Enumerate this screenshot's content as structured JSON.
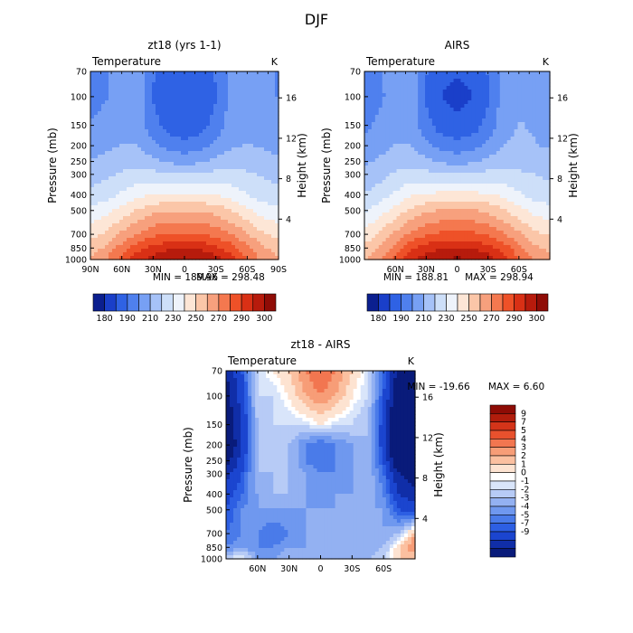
{
  "figure": {
    "title": "DJF"
  },
  "colors": {
    "model_scale": [
      "#0b1f8f",
      "#1a3fc9",
      "#2f62e4",
      "#4f80ee",
      "#77a0f4",
      "#a6c2f8",
      "#cddff9",
      "#eef3fb",
      "#fde6d6",
      "#fbc6a8",
      "#f7a07d",
      "#f4784f",
      "#ee5128",
      "#d93015",
      "#b71b0c",
      "#8f0c06"
    ],
    "diff_scale": [
      "#091b7a",
      "#102ea8",
      "#1b45cf",
      "#2d5fe3",
      "#4a7be9",
      "#6f98ef",
      "#93b1f2",
      "#b7cbf6",
      "#d9e5fa",
      "#ffffff",
      "#fde3d1",
      "#fbc0a0",
      "#f79d77",
      "#f27650",
      "#e8512d",
      "#d43419",
      "#b11d0c",
      "#8e0c05"
    ],
    "bottom_fill": "#f0f0f0"
  },
  "panels": {
    "model": {
      "title": "zt18 (yrs 1-1)",
      "variable": "Temperature",
      "unit": "K",
      "min_label": "MIN = 189.96",
      "max_label": "MAX = 298.48"
    },
    "airs": {
      "title": "AIRS",
      "variable": "Temperature",
      "unit": "K",
      "min_label": "MIN = 188.81",
      "max_label": "MAX = 298.94"
    },
    "diff": {
      "title": "zt18 - AIRS",
      "variable": "Temperature",
      "unit": "K",
      "min_label": "MIN = -19.66",
      "max_label": "MAX =    6.60"
    }
  },
  "chart_data": [
    {
      "type": "heatmap",
      "title": "zt18 (yrs 1-1)",
      "variable": "Temperature",
      "unit": "K",
      "ylabel": "Pressure (mb)",
      "y2label": "Height (km)",
      "yticks": [
        "70",
        "100",
        "150",
        "200",
        "250",
        "300",
        "400",
        "500",
        "700",
        "850",
        "1000"
      ],
      "y2ticks": [
        "16",
        "12",
        "8",
        "4"
      ],
      "xticks": [
        "90N",
        "60N",
        "30N",
        "0",
        "30S",
        "60S",
        "90S"
      ],
      "min": 189.96,
      "max": 298.48,
      "colorbar_ticks": [
        "180",
        "190",
        "210",
        "230",
        "250",
        "270",
        "290",
        "300"
      ],
      "pressure_levels_mb": [
        70,
        100,
        150,
        200,
        250,
        300,
        400,
        500,
        700,
        850,
        1000
      ],
      "lat_deg": [
        90,
        75,
        60,
        45,
        30,
        15,
        0,
        -15,
        -30,
        -45,
        -60,
        -75,
        -90
      ],
      "temperature_K": [
        [
          205,
          207,
          210,
          212,
          200,
          195,
          193,
          195,
          200,
          210,
          212,
          211,
          207
        ],
        [
          205,
          207,
          210,
          212,
          199,
          193,
          191,
          193,
          199,
          210,
          212,
          211,
          207
        ],
        [
          208,
          210,
          213,
          213,
          202,
          196,
          194,
          196,
          202,
          212,
          214,
          213,
          210
        ],
        [
          212,
          214,
          216,
          216,
          210,
          204,
          202,
          204,
          210,
          215,
          216,
          215,
          213
        ],
        [
          216,
          218,
          220,
          220,
          218,
          214,
          213,
          214,
          218,
          220,
          220,
          219,
          217
        ],
        [
          220,
          222,
          225,
          226,
          226,
          225,
          225,
          225,
          226,
          226,
          225,
          223,
          221
        ],
        [
          226,
          229,
          233,
          238,
          240,
          241,
          241,
          241,
          240,
          237,
          232,
          228,
          226
        ],
        [
          233,
          237,
          243,
          249,
          254,
          255,
          256,
          255,
          253,
          248,
          242,
          236,
          234
        ],
        [
          245,
          250,
          258,
          265,
          270,
          273,
          274,
          273,
          270,
          264,
          257,
          249,
          246
        ],
        [
          252,
          258,
          268,
          277,
          284,
          287,
          288,
          287,
          283,
          276,
          266,
          257,
          253
        ],
        [
          258,
          265,
          276,
          286,
          292,
          296,
          298,
          296,
          292,
          284,
          272,
          262,
          258
        ]
      ]
    },
    {
      "type": "heatmap",
      "title": "AIRS",
      "variable": "Temperature",
      "unit": "K",
      "ylabel": "Pressure (mb)",
      "y2label": "Height (km)",
      "yticks": [
        "70",
        "100",
        "150",
        "200",
        "250",
        "300",
        "400",
        "500",
        "700",
        "850",
        "1000"
      ],
      "y2ticks": [
        "16",
        "12",
        "8",
        "4"
      ],
      "xticks": [
        "60N",
        "30N",
        "0",
        "30S",
        "60S"
      ],
      "min": 188.81,
      "max": 298.94,
      "colorbar_ticks": [
        "180",
        "190",
        "210",
        "230",
        "250",
        "270",
        "290",
        "300"
      ],
      "pressure_levels_mb": [
        70,
        100,
        150,
        200,
        250,
        300,
        400,
        500,
        700,
        850,
        1000
      ],
      "lat_deg": [
        90,
        75,
        60,
        45,
        30,
        15,
        0,
        -15,
        -30,
        -45,
        -60,
        -75,
        -90
      ],
      "temperature_K": [
        [
          203,
          207,
          211,
          213,
          200,
          194,
          192,
          194,
          200,
          211,
          214,
          214,
          212
        ],
        [
          203,
          206,
          211,
          213,
          198,
          191,
          189,
          191,
          198,
          211,
          214,
          214,
          212
        ],
        [
          206,
          209,
          213,
          213,
          202,
          195,
          193,
          195,
          202,
          213,
          216,
          215,
          213
        ],
        [
          210,
          213,
          216,
          216,
          210,
          204,
          202,
          204,
          210,
          216,
          217,
          216,
          215
        ],
        [
          214,
          217,
          220,
          220,
          218,
          214,
          213,
          214,
          218,
          221,
          221,
          220,
          218
        ],
        [
          218,
          221,
          225,
          227,
          226,
          225,
          225,
          225,
          226,
          226,
          225,
          224,
          222
        ],
        [
          224,
          228,
          233,
          239,
          241,
          242,
          242,
          242,
          241,
          238,
          233,
          229,
          227
        ],
        [
          231,
          236,
          243,
          250,
          255,
          257,
          257,
          257,
          254,
          249,
          243,
          237,
          235
        ],
        [
          243,
          249,
          258,
          266,
          271,
          274,
          275,
          274,
          271,
          265,
          258,
          250,
          247
        ],
        [
          250,
          257,
          268,
          278,
          285,
          288,
          289,
          288,
          284,
          277,
          267,
          258,
          254
        ],
        [
          256,
          264,
          276,
          287,
          293,
          297,
          299,
          297,
          293,
          285,
          273,
          263,
          259
        ]
      ]
    },
    {
      "type": "heatmap",
      "title": "zt18 - AIRS",
      "variable": "Temperature",
      "unit": "K",
      "ylabel": "Pressure (mb)",
      "y2label": "Height (km)",
      "yticks": [
        "70",
        "100",
        "150",
        "200",
        "250",
        "300",
        "400",
        "500",
        "700",
        "850",
        "1000"
      ],
      "y2ticks": [
        "16",
        "12",
        "8",
        "4"
      ],
      "xticks": [
        "60N",
        "30N",
        "0",
        "30S",
        "60S"
      ],
      "min": -19.66,
      "max": 6.6,
      "colorbar_ticks": [
        "9",
        "7",
        "5",
        "4",
        "3",
        "2",
        "1",
        "0",
        "-1",
        "-2",
        "-3",
        "-4",
        "-5",
        "-7",
        "-9"
      ],
      "pressure_levels_mb": [
        70,
        100,
        150,
        200,
        250,
        300,
        400,
        500,
        700,
        850,
        1000
      ],
      "lat_deg": [
        90,
        75,
        60,
        45,
        30,
        15,
        0,
        -15,
        -30,
        -45,
        -60,
        -75,
        -90
      ],
      "temperature_diff_K": [
        [
          -9,
          -5,
          0,
          1,
          2,
          4,
          5,
          4,
          2,
          0,
          -4,
          -10,
          -12
        ],
        [
          -10,
          -6,
          0,
          0,
          1,
          3,
          4,
          3,
          1,
          0,
          -5,
          -12,
          -14
        ],
        [
          -11,
          -7,
          -1,
          0,
          0,
          0,
          1,
          0,
          0,
          -1,
          -6,
          -14,
          -17
        ],
        [
          -12,
          -7,
          -1,
          0,
          -1,
          -3,
          -4,
          -3,
          -2,
          -1,
          -6,
          -16,
          -19
        ],
        [
          -10,
          -6,
          -1,
          0,
          -1,
          -3,
          -4,
          -3,
          -2,
          -1,
          -5,
          -12,
          -15
        ],
        [
          -8,
          -5,
          -1,
          -1,
          -1,
          -2,
          -3,
          -3,
          -2,
          -1,
          -4,
          -9,
          -11
        ],
        [
          -6,
          -4,
          -2,
          -1,
          -1,
          -2,
          -3,
          -2,
          -2,
          -1,
          -3,
          -7,
          -8
        ],
        [
          -5,
          -3,
          -2,
          -2,
          -2,
          -2,
          -2,
          -2,
          -2,
          -2,
          -2,
          -5,
          -6
        ],
        [
          -4,
          -3,
          -3,
          -4,
          -3,
          -2,
          -2,
          -2,
          -2,
          -2,
          -2,
          -1,
          3
        ],
        [
          -3,
          -2,
          -3,
          -3,
          -2,
          -2,
          -2,
          -2,
          -2,
          -2,
          -1,
          2,
          4
        ],
        [
          0,
          1,
          -2,
          -2,
          -1,
          -2,
          -2,
          -2,
          -2,
          -1,
          0,
          2,
          2
        ]
      ]
    }
  ]
}
